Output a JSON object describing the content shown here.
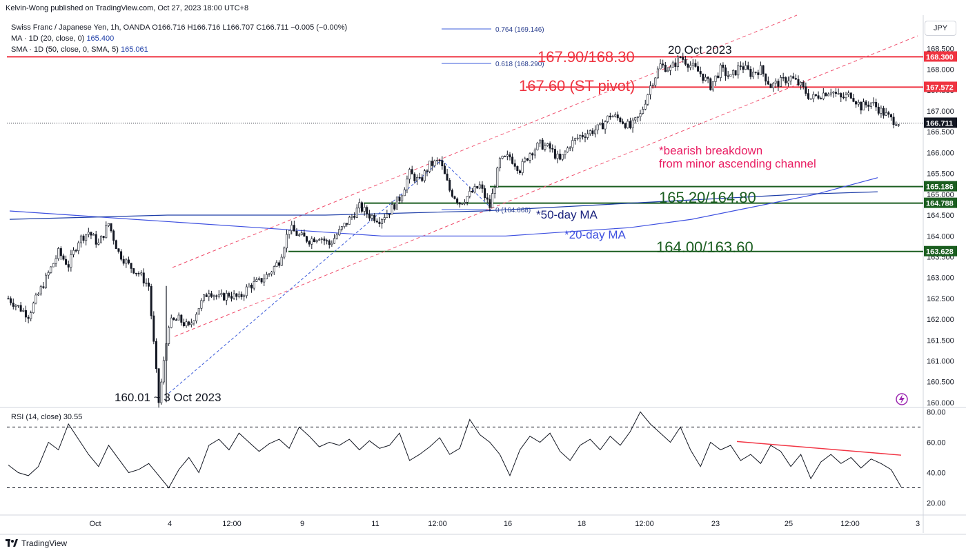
{
  "header": {
    "publisher": "Kelvin-Wong published on TradingView.com, Oct 27, 2023 18:00 UTC+8"
  },
  "legend": {
    "symbol_line": "Swiss Franc / Japanese Yen, 1h, OANDA  O166.716  H166.716  L166.707  C166.711  −0.005 (−0.00%)",
    "ma_label": "MA · 1D (20, close, 0)",
    "ma_value": "165.400",
    "sma_label": "SMA · 1D (50, close, 0, SMA, 5)",
    "sma_value": "165.061"
  },
  "currency": "JPY",
  "rsi_legend": {
    "label": "RSI (14, close)",
    "value": "30.55"
  },
  "footer": {
    "brand": "TradingView"
  },
  "colors": {
    "red_line": "#ef3340",
    "green_line": "#1b5e20",
    "channel": "#f0506e",
    "ma20": "#3f51e0",
    "ma50": "#1e3ea8",
    "fib": "#3b5bdb",
    "rsi_trend": "#f23645"
  },
  "chart_data": [
    {
      "type": "candlestick",
      "title": "",
      "x_tick_labels": [
        "Oct",
        "4",
        "12:00",
        "9",
        "11",
        "12:00",
        "16",
        "18",
        "12:00",
        "23",
        "25",
        "12:00",
        "3"
      ],
      "y_tick_labels": [
        "160.000",
        "160.500",
        "161.000",
        "161.500",
        "162.000",
        "162.500",
        "163.000",
        "163.500",
        "164.000",
        "164.500",
        "165.000",
        "165.500",
        "166.000",
        "166.500",
        "167.000",
        "167.500",
        "168.000",
        "168.500"
      ],
      "ylim": [
        159.9,
        169.3
      ],
      "price_path": [
        162.5,
        162.3,
        162.1,
        162.6,
        163.1,
        163.6,
        163.3,
        163.9,
        164.1,
        163.8,
        164.3,
        163.6,
        163.3,
        163.1,
        162.8,
        160.01,
        161.9,
        162.0,
        161.8,
        162.3,
        162.7,
        162.5,
        162.6,
        162.5,
        162.8,
        162.9,
        163.1,
        163.4,
        164.2,
        164.0,
        163.9,
        164.0,
        163.8,
        164.1,
        164.4,
        164.7,
        164.5,
        164.4,
        164.6,
        164.9,
        165.5,
        165.3,
        165.7,
        165.8,
        165.1,
        164.8,
        165.0,
        165.2,
        164.7,
        165.8,
        165.9,
        165.6,
        166.0,
        166.2,
        166.1,
        165.8,
        166.2,
        166.4,
        166.5,
        166.6,
        166.9,
        166.8,
        166.6,
        166.9,
        167.6,
        168.1,
        168.0,
        168.3,
        168.1,
        167.9,
        167.6,
        168.0,
        167.8,
        168.1,
        167.9,
        168.0,
        167.6,
        167.7,
        167.8,
        167.6,
        167.3,
        167.4,
        167.5,
        167.3,
        167.4,
        167.1,
        167.2,
        167.0,
        166.8,
        166.711
      ],
      "dates": [
        "3 Oct 2023",
        "20 Oct 2023"
      ],
      "last_price": "166.711",
      "price_tags": [
        {
          "value": "168.300",
          "color": "#ef3340"
        },
        {
          "value": "167.572",
          "color": "#ef3340"
        },
        {
          "value": "166.711",
          "color": "#131722"
        },
        {
          "value": "165.186",
          "color": "#1b5e20"
        },
        {
          "value": "164.788",
          "color": "#1b5e20"
        },
        {
          "value": "163.628",
          "color": "#1b5e20"
        }
      ],
      "horizontal_levels": [
        {
          "price": 168.3,
          "color": "red"
        },
        {
          "price": 167.572,
          "color": "red"
        },
        {
          "price": 165.186,
          "color": "green"
        },
        {
          "price": 164.788,
          "color": "green"
        },
        {
          "price": 163.628,
          "color": "green"
        }
      ],
      "fib_levels": [
        {
          "label": "0.764 (169.146)"
        },
        {
          "label": "0.618 (168.290)"
        },
        {
          "label": "0 (164.668)"
        }
      ],
      "annotations": {
        "resistance": "167.90/168.30",
        "pivot": "167.60 (ST pivot)",
        "support1": "165.20/164.80",
        "support2": "164.00/163.60",
        "peak": "20 Oct 2023",
        "low": "160.01 ~ 3 Oct 2023",
        "breakdown_line1": "*bearish breakdown",
        "breakdown_line2": "from minor ascending channel",
        "ma50": "*50-day MA",
        "ma20": "*20-day MA"
      },
      "ma20_path": [
        164.6,
        164.5,
        164.4,
        164.3,
        164.2,
        164.1,
        164.0,
        164.0,
        164.0,
        164.1,
        164.2,
        164.4,
        164.7,
        165.0,
        165.4
      ],
      "ma50_path": [
        164.4,
        164.45,
        164.5,
        164.5,
        164.5,
        164.55,
        164.6,
        164.7,
        164.8,
        164.9,
        165.0,
        165.06
      ]
    },
    {
      "type": "line",
      "title": "RSI (14, close)",
      "y_tick_labels": [
        "20.00",
        "40.00",
        "60.00",
        "80.00"
      ],
      "ylim": [
        13,
        82
      ],
      "bands": [
        30,
        70
      ],
      "last_value": 30.55,
      "values": [
        45,
        40,
        38,
        44,
        60,
        55,
        72,
        62,
        52,
        44,
        58,
        49,
        40,
        42,
        46,
        38,
        30,
        42,
        50,
        40,
        58,
        62,
        55,
        66,
        60,
        54,
        59,
        62,
        56,
        70,
        64,
        57,
        60,
        58,
        62,
        55,
        61,
        56,
        58,
        66,
        48,
        52,
        57,
        63,
        52,
        56,
        75,
        65,
        60,
        52,
        38,
        55,
        64,
        60,
        66,
        54,
        48,
        58,
        62,
        55,
        64,
        58,
        67,
        80,
        72,
        66,
        60,
        70,
        55,
        44,
        60,
        55,
        58,
        48,
        52,
        46,
        58,
        54,
        44,
        52,
        36,
        47,
        52,
        46,
        50,
        43,
        49,
        46,
        42,
        30.55
      ],
      "trendline": "bearish divergence line"
    }
  ]
}
